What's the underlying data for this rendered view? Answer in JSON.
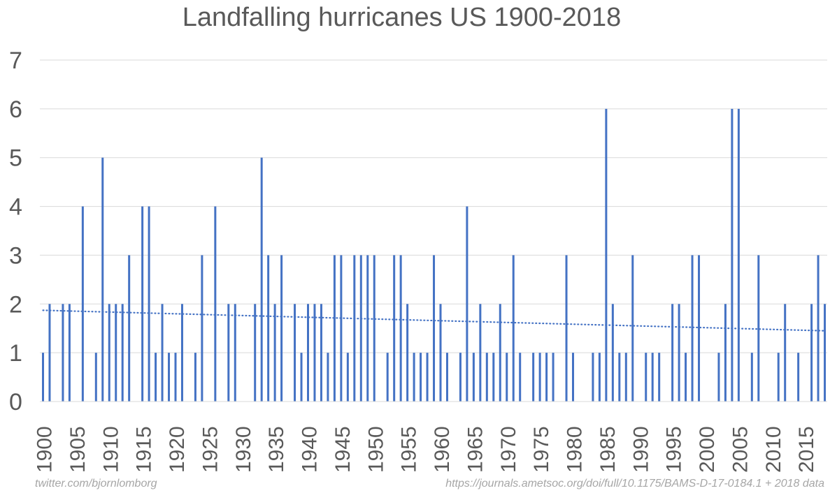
{
  "chart_data": {
    "type": "bar",
    "title": "Landfalling hurricanes US 1900-2018",
    "x": [
      1900,
      1901,
      1902,
      1903,
      1904,
      1905,
      1906,
      1907,
      1908,
      1909,
      1910,
      1911,
      1912,
      1913,
      1914,
      1915,
      1916,
      1917,
      1918,
      1919,
      1920,
      1921,
      1922,
      1923,
      1924,
      1925,
      1926,
      1927,
      1928,
      1929,
      1930,
      1931,
      1932,
      1933,
      1934,
      1935,
      1936,
      1937,
      1938,
      1939,
      1940,
      1941,
      1942,
      1943,
      1944,
      1945,
      1946,
      1947,
      1948,
      1949,
      1950,
      1951,
      1952,
      1953,
      1954,
      1955,
      1956,
      1957,
      1958,
      1959,
      1960,
      1961,
      1962,
      1963,
      1964,
      1965,
      1966,
      1967,
      1968,
      1969,
      1970,
      1971,
      1972,
      1973,
      1974,
      1975,
      1976,
      1977,
      1978,
      1979,
      1980,
      1981,
      1982,
      1983,
      1984,
      1985,
      1986,
      1987,
      1988,
      1989,
      1990,
      1991,
      1992,
      1993,
      1994,
      1995,
      1996,
      1997,
      1998,
      1999,
      2000,
      2001,
      2002,
      2003,
      2004,
      2005,
      2006,
      2007,
      2008,
      2009,
      2010,
      2011,
      2012,
      2013,
      2014,
      2015,
      2016,
      2017,
      2018
    ],
    "values": [
      1,
      2,
      0,
      2,
      2,
      0,
      4,
      0,
      1,
      5,
      2,
      2,
      2,
      3,
      0,
      4,
      4,
      1,
      2,
      1,
      1,
      2,
      0,
      1,
      3,
      0,
      4,
      0,
      2,
      2,
      0,
      0,
      2,
      5,
      3,
      2,
      3,
      0,
      2,
      1,
      2,
      2,
      2,
      1,
      3,
      3,
      1,
      3,
      3,
      3,
      3,
      0,
      1,
      3,
      3,
      2,
      1,
      1,
      1,
      3,
      2,
      1,
      0,
      1,
      4,
      1,
      2,
      1,
      1,
      2,
      1,
      3,
      1,
      0,
      1,
      1,
      1,
      1,
      0,
      3,
      1,
      0,
      0,
      1,
      1,
      6,
      2,
      1,
      1,
      3,
      0,
      1,
      1,
      1,
      0,
      2,
      2,
      1,
      3,
      3,
      0,
      0,
      1,
      2,
      6,
      6,
      0,
      1,
      3,
      0,
      0,
      1,
      2,
      0,
      1,
      0,
      2,
      3,
      2
    ],
    "trend": {
      "style": "dotted",
      "start": 1.87,
      "end": 1.45
    },
    "xticks": [
      "1900",
      "1905",
      "1910",
      "1915",
      "1920",
      "1925",
      "1930",
      "1935",
      "1940",
      "1945",
      "1950",
      "1955",
      "1960",
      "1965",
      "1970",
      "1975",
      "1980",
      "1985",
      "1990",
      "1995",
      "2000",
      "2005",
      "2010",
      "2015"
    ],
    "yticks": [
      "0",
      "1",
      "2",
      "3",
      "4",
      "5",
      "6",
      "7"
    ],
    "ylim": [
      0,
      7
    ],
    "xlabel": "",
    "ylabel": "",
    "grid": true,
    "legend": "none",
    "bar_color": "#4472c4",
    "grid_color": "#d9d9d9"
  },
  "footer": {
    "left": "twitter.com/bjornlomborg",
    "right": "https://journals.ametsoc.org/doi/full/10.1175/BAMS-D-17-0184.1 + 2018 data"
  }
}
